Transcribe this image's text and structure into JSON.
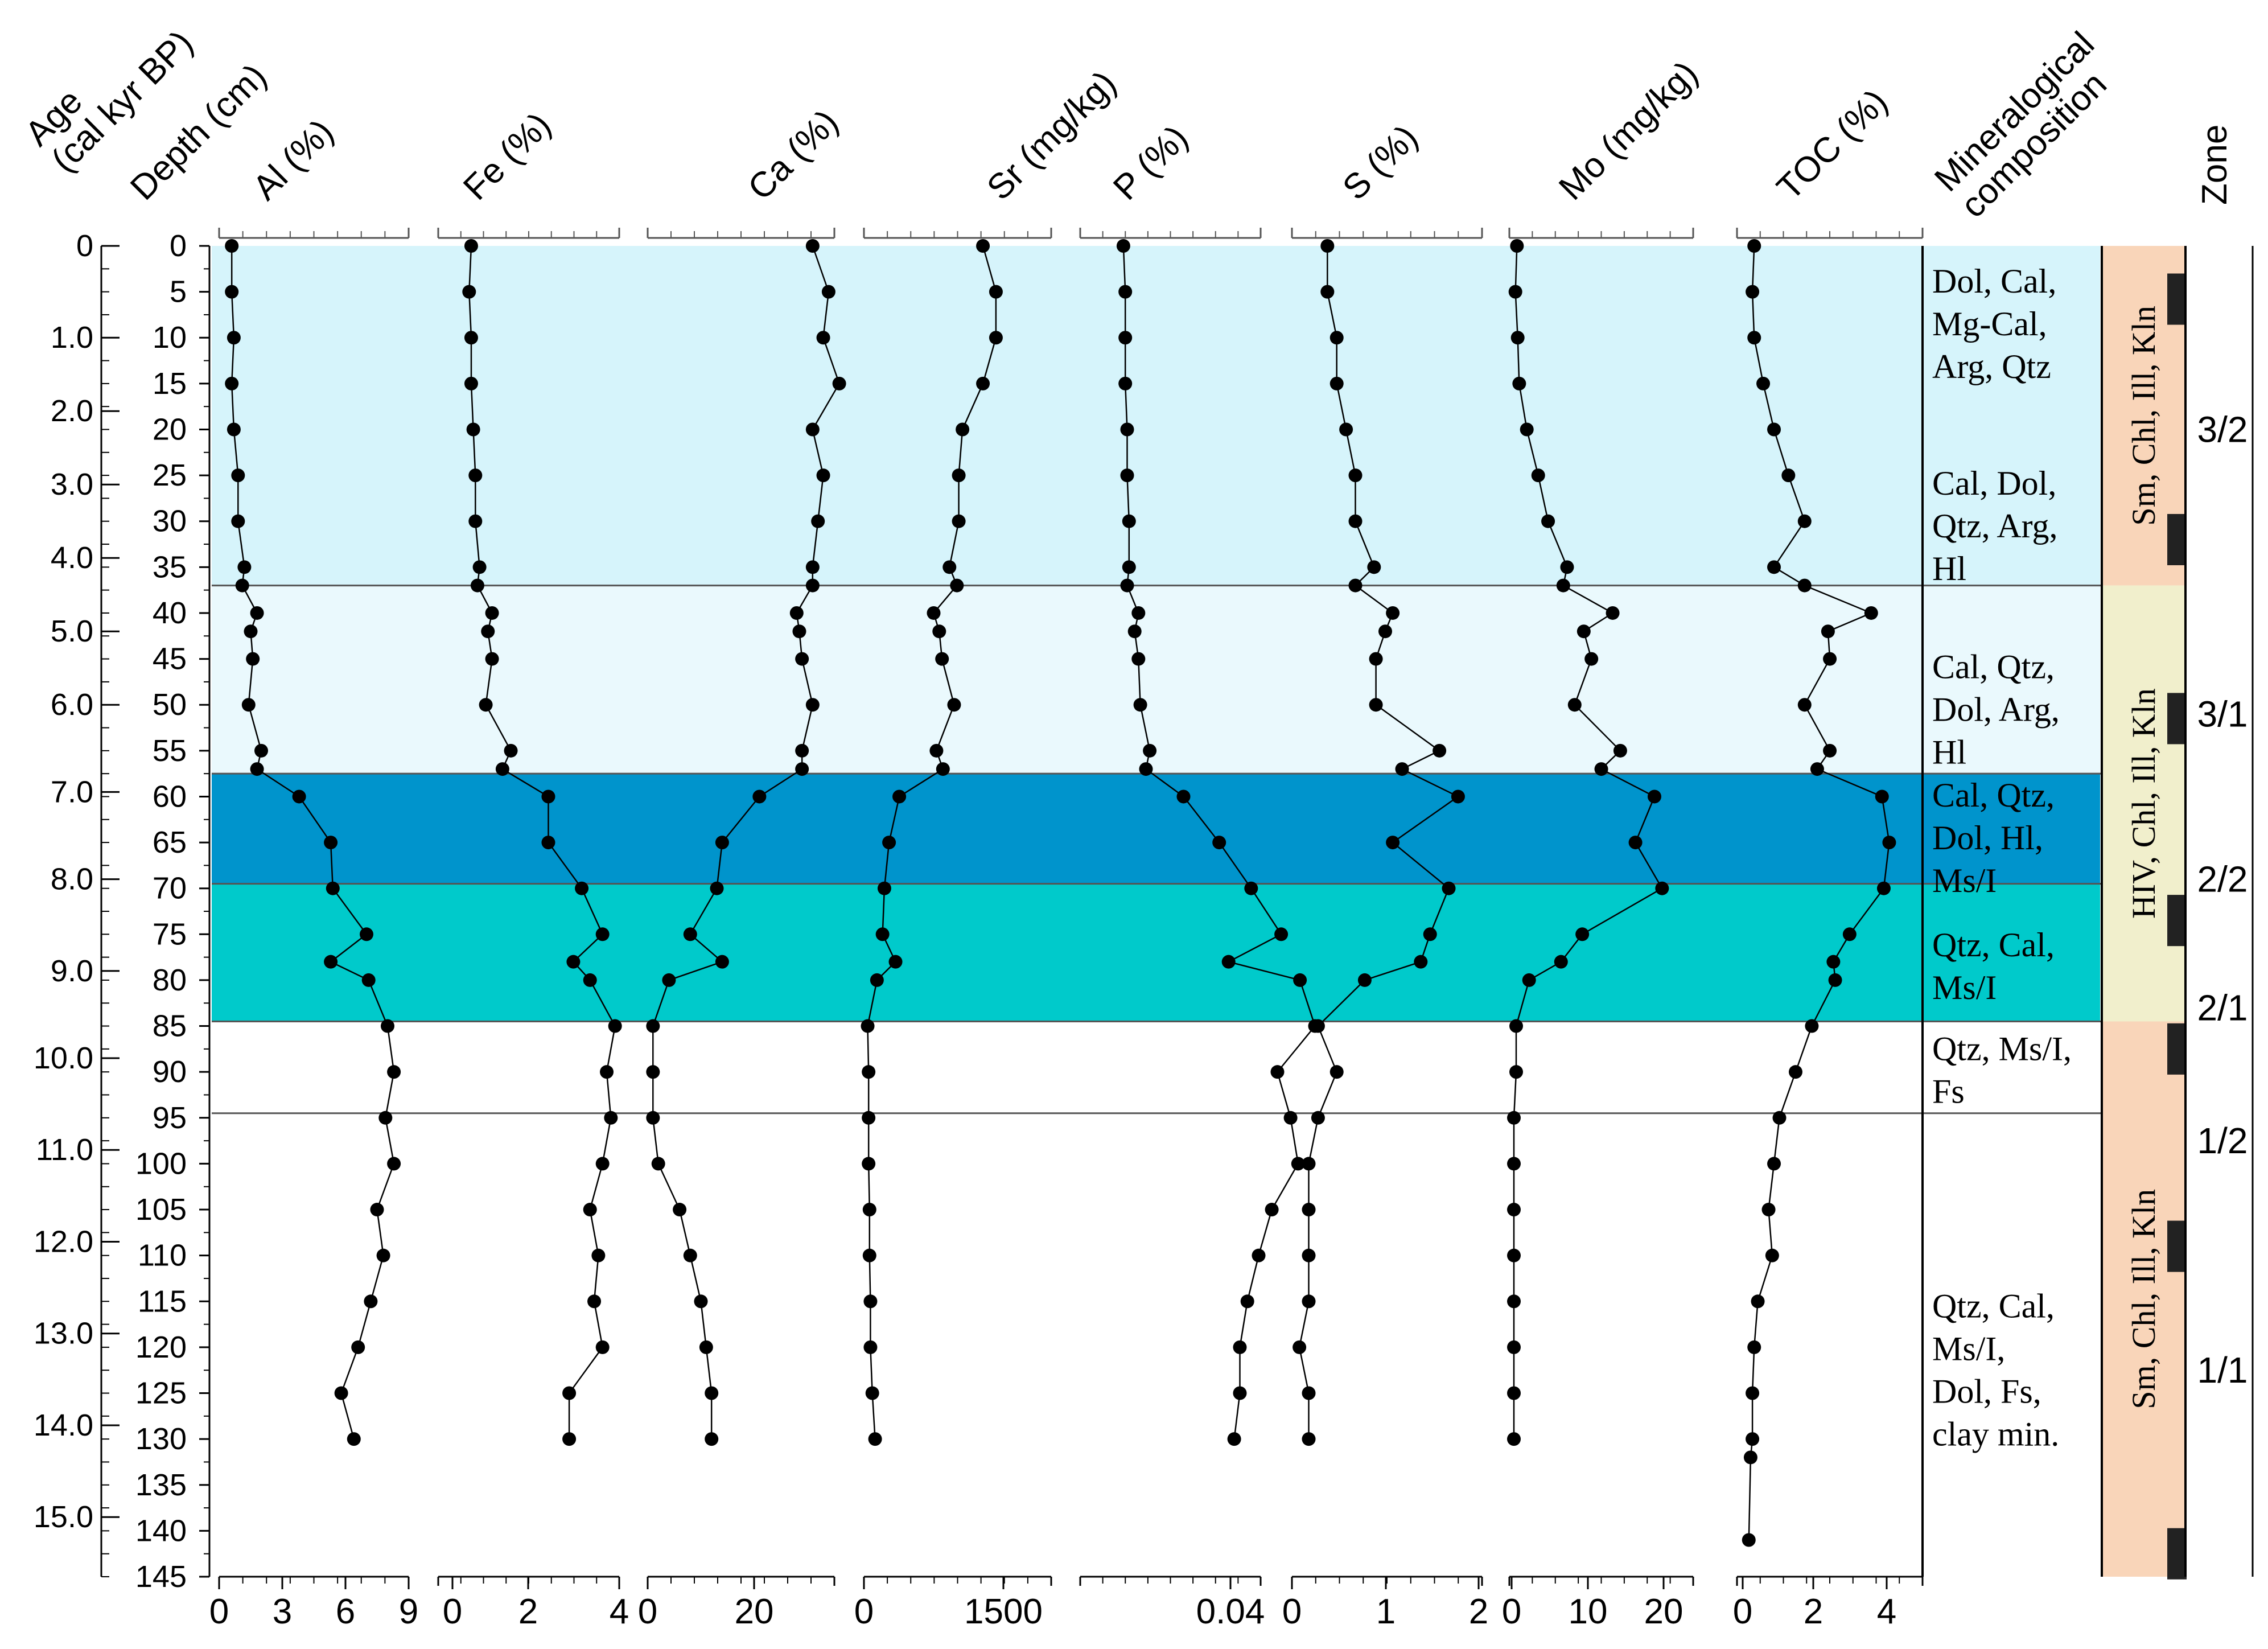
{
  "chart_data": {
    "type": "line",
    "headers": {
      "age": "Age\n(cal kyr BP)",
      "depth": "Depth (cm)",
      "mineral": "Mineralogical\ncomposition",
      "zone": "Zone"
    },
    "age_ticks": [
      "0",
      "1.0",
      "2.0",
      "3.0",
      "4.0",
      "5.0",
      "6.0",
      "7.0",
      "8.0",
      "9.0",
      "10.0",
      "11.0",
      "12.0",
      "13.0",
      "14.0",
      "15.0"
    ],
    "age_positions_cm": [
      0,
      10,
      18,
      26,
      34,
      42,
      50,
      59.5,
      69,
      79,
      88.5,
      98.5,
      108.5,
      118.5,
      128.5,
      138.5
    ],
    "depth_ticks": [
      "0",
      "5",
      "10",
      "15",
      "20",
      "25",
      "30",
      "35",
      "40",
      "45",
      "50",
      "55",
      "60",
      "65",
      "70",
      "75",
      "80",
      "85",
      "90",
      "95",
      "100",
      "105",
      "110",
      "115",
      "120",
      "125",
      "130",
      "135",
      "140",
      "145"
    ],
    "depth_range": [
      0,
      145
    ],
    "depth": [
      0,
      5,
      10,
      15,
      20,
      25,
      30,
      35,
      37,
      40,
      42,
      45,
      50,
      55,
      57,
      60,
      65,
      70,
      75,
      78,
      80,
      85,
      90,
      95,
      100,
      105,
      110,
      115,
      120,
      125,
      130
    ],
    "series": [
      {
        "name": "Al (%)",
        "range": [
          0,
          9
        ],
        "ticks": [
          "0",
          "3",
          "6",
          "9"
        ],
        "values": [
          0.6,
          0.6,
          0.7,
          0.6,
          0.7,
          0.9,
          0.9,
          1.2,
          1.1,
          1.8,
          1.5,
          1.6,
          1.4,
          2.0,
          1.8,
          3.8,
          5.3,
          5.4,
          7.0,
          5.3,
          7.1,
          8.0,
          8.3,
          7.9,
          8.3,
          7.5,
          7.8,
          7.2,
          6.6,
          5.8,
          6.4
        ]
      },
      {
        "name": "Fe (%)",
        "range": [
          0,
          4
        ],
        "ticks": [
          "0",
          "2",
          "4"
        ],
        "values": [
          0.45,
          0.4,
          0.45,
          0.45,
          0.5,
          0.55,
          0.55,
          0.65,
          0.6,
          0.95,
          0.85,
          0.95,
          0.8,
          1.4,
          1.2,
          2.3,
          2.3,
          3.1,
          3.6,
          2.9,
          3.3,
          3.9,
          3.7,
          3.8,
          3.6,
          3.3,
          3.5,
          3.4,
          3.6,
          2.8,
          2.8
        ]
      },
      {
        "name": "Ca (%)",
        "range": [
          0,
          40
        ],
        "ticks": [
          "0",
          "20"
        ],
        "values": [
          31,
          34,
          33,
          36,
          31,
          33,
          32,
          31,
          31,
          28,
          28.5,
          29,
          31,
          29,
          29,
          21,
          14,
          13,
          8,
          14,
          4,
          1,
          1,
          1,
          2,
          6,
          8,
          10,
          11,
          12,
          12
        ]
      },
      {
        "name": "Sr (mg/kg)",
        "range": [
          0,
          1500
        ],
        "ticks": [
          "0",
          "1500"
        ],
        "values": [
          1280,
          1420,
          1420,
          1280,
          1060,
          1020,
          1020,
          920,
          1000,
          750,
          810,
          840,
          970,
          780,
          850,
          380,
          270,
          220,
          200,
          340,
          140,
          40,
          50,
          50,
          50,
          60,
          60,
          70,
          70,
          90,
          120
        ]
      },
      {
        "name": "P (%)",
        "range": [
          0,
          0.07
        ],
        "ticks": [
          "0.04"
        ],
        "values": [
          0.0115,
          0.012,
          0.012,
          0.012,
          0.0125,
          0.0125,
          0.013,
          0.013,
          0.0125,
          0.0155,
          0.0145,
          0.0155,
          0.016,
          0.0185,
          0.0175,
          0.0275,
          0.037,
          0.0455,
          0.0535,
          0.0395,
          0.0585,
          0.0625,
          0.0525,
          0.056,
          0.058,
          0.051,
          0.0475,
          0.0445,
          0.0425,
          0.0425,
          0.041
        ]
      },
      {
        "name": "S (%)",
        "range": [
          0,
          2
        ],
        "ticks": [
          "0",
          "1",
          "2"
        ],
        "values": [
          0.38,
          0.38,
          0.48,
          0.48,
          0.58,
          0.68,
          0.68,
          0.88,
          0.68,
          1.08,
          1.0,
          0.9,
          0.9,
          1.58,
          1.18,
          1.78,
          1.08,
          1.68,
          1.48,
          1.38,
          0.78,
          0.28,
          0.48,
          0.28,
          0.18,
          0.18,
          0.18,
          0.18,
          0.08,
          0.18,
          0.18
        ]
      },
      {
        "name": "Mo (mg/kg)",
        "range": [
          0,
          23
        ],
        "ticks": [
          "0",
          "10",
          "20"
        ],
        "values": [
          0.7,
          0.5,
          0.8,
          1.0,
          2.0,
          3.5,
          4.8,
          7.3,
          6.8,
          13.3,
          9.5,
          10.5,
          8.3,
          14.3,
          11.8,
          18.8,
          16.3,
          19.8,
          9.3,
          6.5,
          2.3,
          0.6,
          0.6,
          0.3,
          0.3,
          0.3,
          0.3,
          0.3,
          0.3,
          0.3,
          0.3
        ]
      },
      {
        "name": "TOC (%)",
        "range": [
          0,
          5
        ],
        "ticks": [
          "0",
          "2",
          "4"
        ],
        "values": [
          0.32,
          0.27,
          0.32,
          0.57,
          0.87,
          1.27,
          1.72,
          0.87,
          1.72,
          3.57,
          2.37,
          2.42,
          1.72,
          2.42,
          2.07,
          3.87,
          4.07,
          3.92,
          2.97,
          2.52,
          2.57,
          1.92,
          1.47,
          1.02,
          0.87,
          0.72,
          0.82,
          0.42,
          0.32,
          0.27,
          0.27
        ],
        "extra_depth": [
          132,
          141
        ],
        "extra_values": [
          0.22,
          0.17
        ]
      }
    ],
    "bands": [
      {
        "from": 0,
        "to": 37,
        "color": "#d6f4fb"
      },
      {
        "from": 37,
        "to": 57.5,
        "color": "#eaf9fd"
      },
      {
        "from": 57.5,
        "to": 69.5,
        "color": "#0094cc"
      },
      {
        "from": 69.5,
        "to": 84.5,
        "color": "#00cacb"
      }
    ],
    "divider_lines": [
      37,
      57.5,
      69.5,
      84.5,
      94.5
    ],
    "mineral_blocks": [
      {
        "lines": [
          "Dol, Cal,",
          "Mg-Cal,",
          "Arg, Qtz"
        ],
        "center": 8.5
      },
      {
        "lines": [
          "Cal, Dol,",
          "Qtz, Arg,",
          "Hl"
        ],
        "center": 30.5
      },
      {
        "lines": [
          "Cal, Qtz,",
          "Dol, Arg,",
          "Hl"
        ],
        "center": 50.5
      },
      {
        "lines": [
          "Cal, Qtz,",
          "Dol, Hl,",
          "Ms/I"
        ],
        "center": 64.5
      },
      {
        "lines": [
          "Qtz, Cal,",
          "Ms/I"
        ],
        "center": 78.5
      },
      {
        "lines": [
          "Qtz, Ms/I,",
          "Fs"
        ],
        "center": 89.8
      },
      {
        "lines": [
          "Qtz, Cal,",
          "Ms/I,",
          "Dol, Fs,",
          "clay min."
        ],
        "center": 122.5
      }
    ],
    "clay_zones": [
      {
        "label": "Sm, Chl, Ill, Kln",
        "from": 0,
        "to": 37,
        "color": "#f9d5b9"
      },
      {
        "label": "HIV, Chl, Ill, Kln",
        "from": 37,
        "to": 84.5,
        "color": "#f1efcc"
      },
      {
        "label": "Sm, Chl, Ill, Kln",
        "from": 84.5,
        "to": 145,
        "color": "#f9d5b9"
      }
    ],
    "zones": [
      {
        "label": "3/2",
        "center": 20
      },
      {
        "label": "3/1",
        "center": 51
      },
      {
        "label": "2/2",
        "center": 69
      },
      {
        "label": "2/1",
        "center": 83
      },
      {
        "label": "1/2",
        "center": 97.5
      },
      {
        "label": "1/1",
        "center": 122.5
      }
    ],
    "sample_markers": [
      5.8,
      32,
      51.5,
      73.5,
      87.5,
      109,
      142.5
    ],
    "colors": {
      "line": "#000000",
      "point": "#000000"
    }
  }
}
